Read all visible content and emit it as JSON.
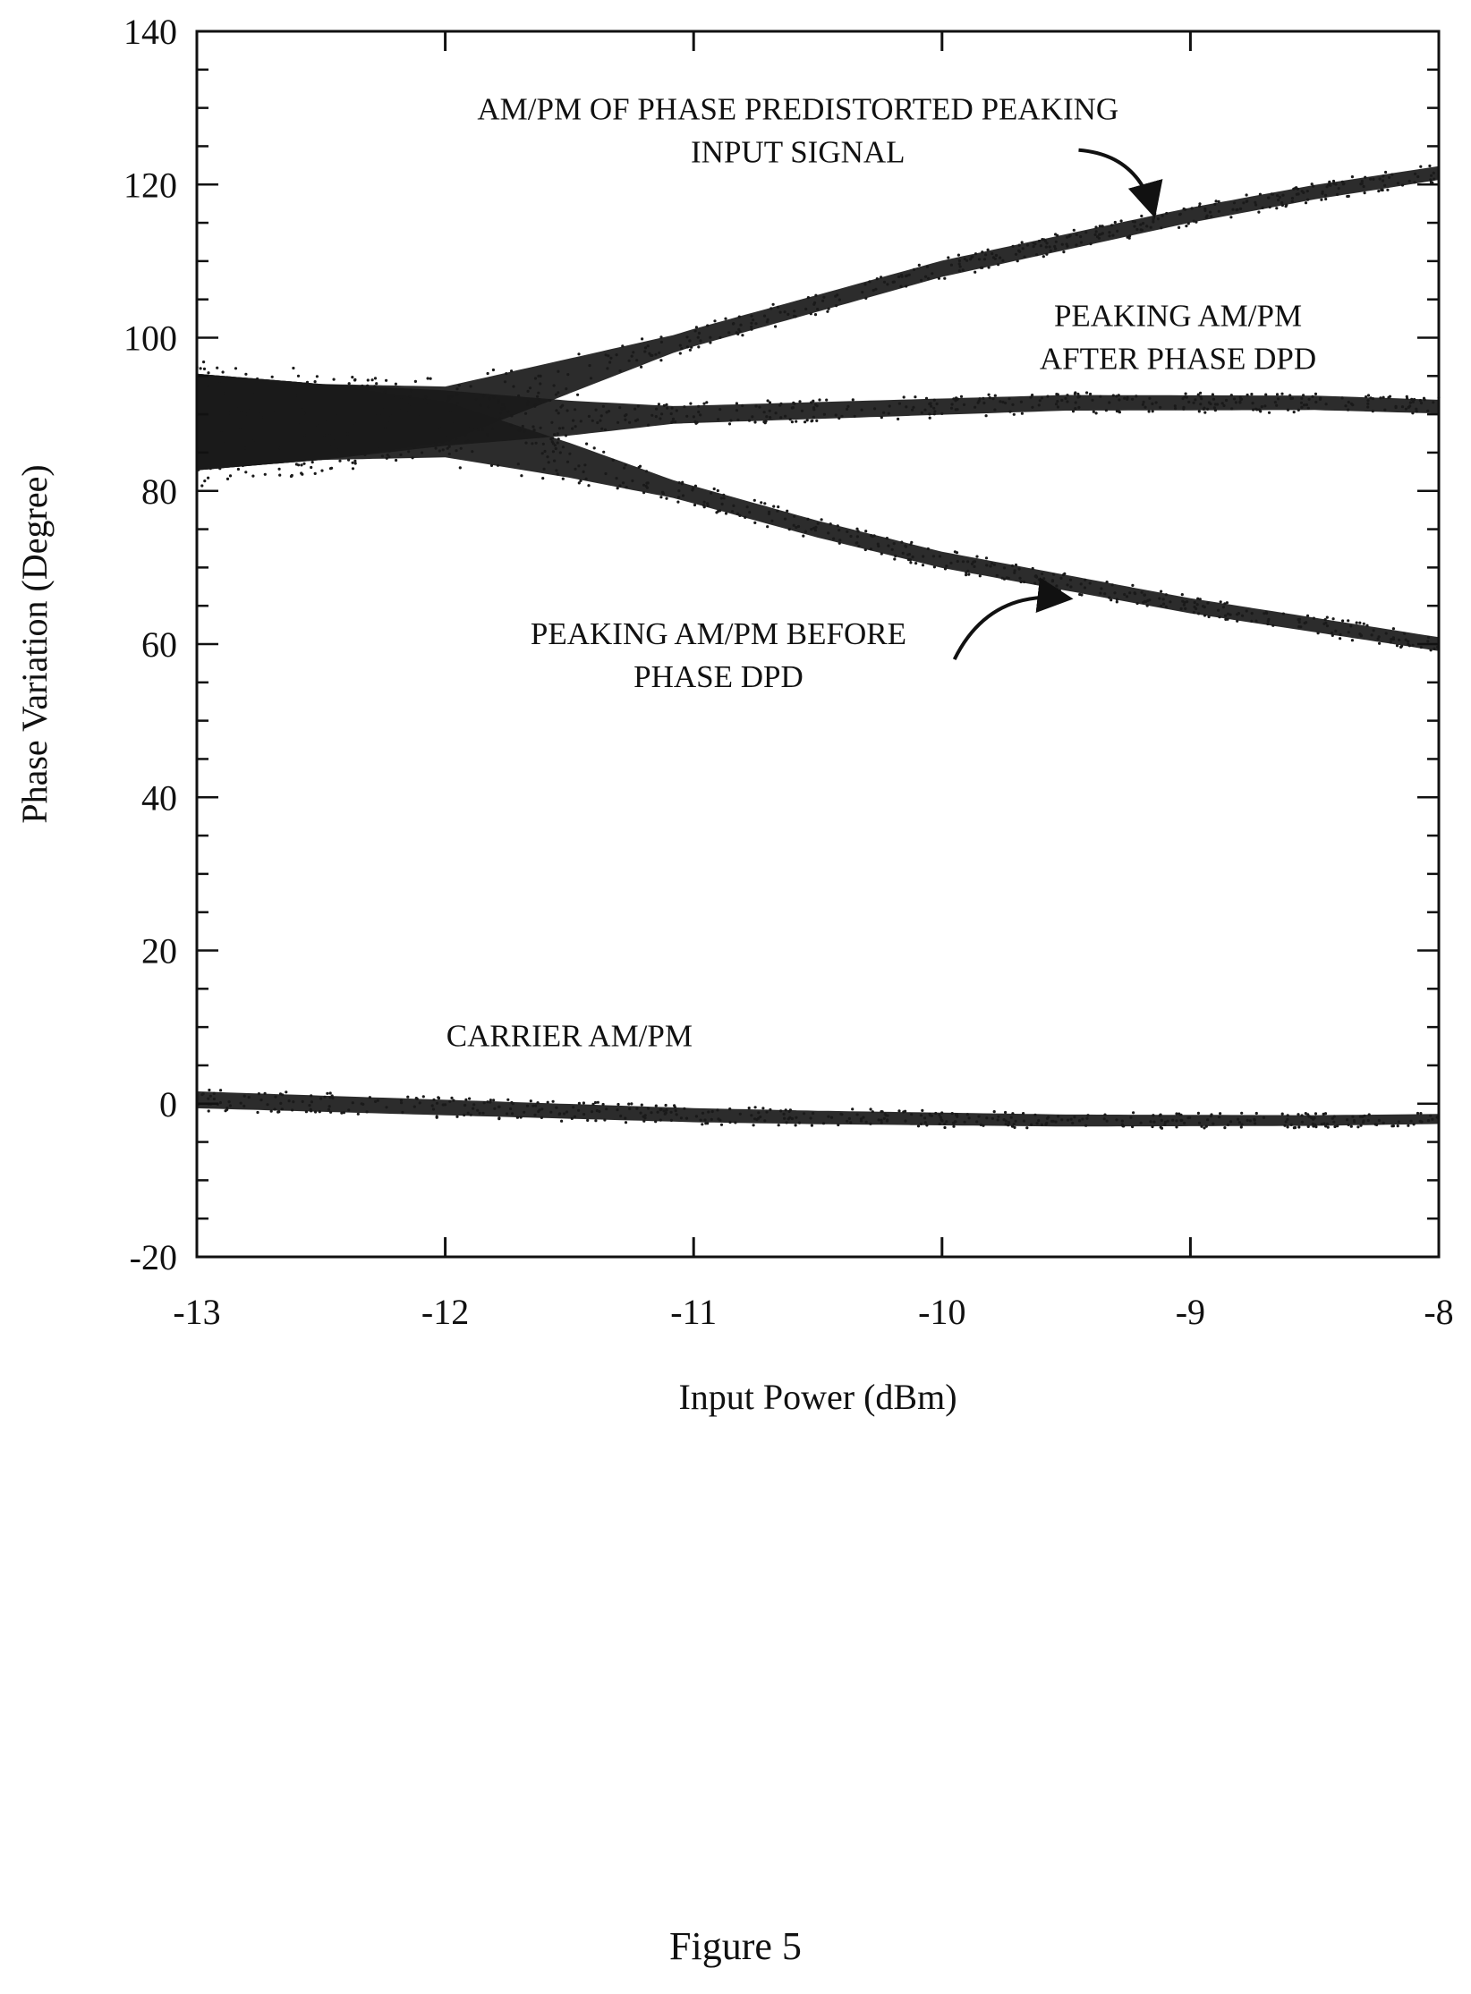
{
  "figure_caption": "Figure 5",
  "chart_data": {
    "type": "scatter",
    "title": "",
    "xlabel": "Input Power (dBm)",
    "ylabel": "Phase Variation (Degree)",
    "xlim": [
      -13,
      -8
    ],
    "ylim": [
      -20,
      140
    ],
    "xticks": [
      -13,
      -12,
      -11,
      -10,
      -9,
      -8
    ],
    "yticks": [
      -20,
      0,
      20,
      40,
      60,
      80,
      100,
      120,
      140
    ],
    "grid": false,
    "color": "#1a1a1a",
    "series": [
      {
        "x": [
          -13,
          -12.5,
          -12,
          -11.5,
          -11,
          -10.5,
          -10,
          -9.5,
          -9,
          -8.5,
          -8
        ],
        "y": [
          89,
          89,
          90,
          95,
          100,
          104.5,
          109,
          112.5,
          116,
          119,
          121.5
        ]
      },
      {
        "x": [
          -13,
          -12.5,
          -12,
          -11.5,
          -11,
          -10.5,
          -10,
          -9.5,
          -9,
          -8.5,
          -8
        ],
        "y": [
          89,
          89,
          89.5,
          89.5,
          90,
          90.5,
          91,
          91.5,
          91.5,
          91.5,
          91
        ]
      },
      {
        "x": [
          -13,
          -12.5,
          -12,
          -11.5,
          -11,
          -10.5,
          -10,
          -9.5,
          -9,
          -8.5,
          -8
        ],
        "y": [
          89,
          89,
          88,
          84,
          79.5,
          75,
          71,
          68,
          65,
          62.5,
          60
        ]
      },
      {
        "x": [
          -13,
          -12.5,
          -12,
          -11.5,
          -11,
          -10.5,
          -10,
          -9.5,
          -9,
          -8.5,
          -8
        ],
        "y": [
          0.5,
          0,
          -0.5,
          -1,
          -1.5,
          -1.8,
          -2,
          -2.2,
          -2.2,
          -2.2,
          -2
        ]
      }
    ],
    "annotations": [
      {
        "lines": [
          "AM/PM OF PHASE PREDISTORTED PEAKING",
          "INPUT SIGNAL"
        ],
        "x": -10.58,
        "y": 128.5,
        "arrow_from": [
          -9.45,
          124.5
        ],
        "arrow_to": [
          -9.15,
          116.5
        ]
      },
      {
        "lines": [
          "PEAKING AM/PM",
          "AFTER PHASE DPD"
        ],
        "x": -9.05,
        "y": 101.5,
        "arrow_from": null,
        "arrow_to": null
      },
      {
        "lines": [
          "PEAKING AM/PM BEFORE",
          "PHASE DPD"
        ],
        "x": -10.9,
        "y": 60,
        "arrow_from": [
          -9.95,
          58
        ],
        "arrow_to": [
          -9.5,
          66
        ]
      },
      {
        "lines": [
          "CARRIER AM/PM"
        ],
        "x": -11.5,
        "y": 7.5,
        "arrow_from": null,
        "arrow_to": null
      }
    ]
  }
}
